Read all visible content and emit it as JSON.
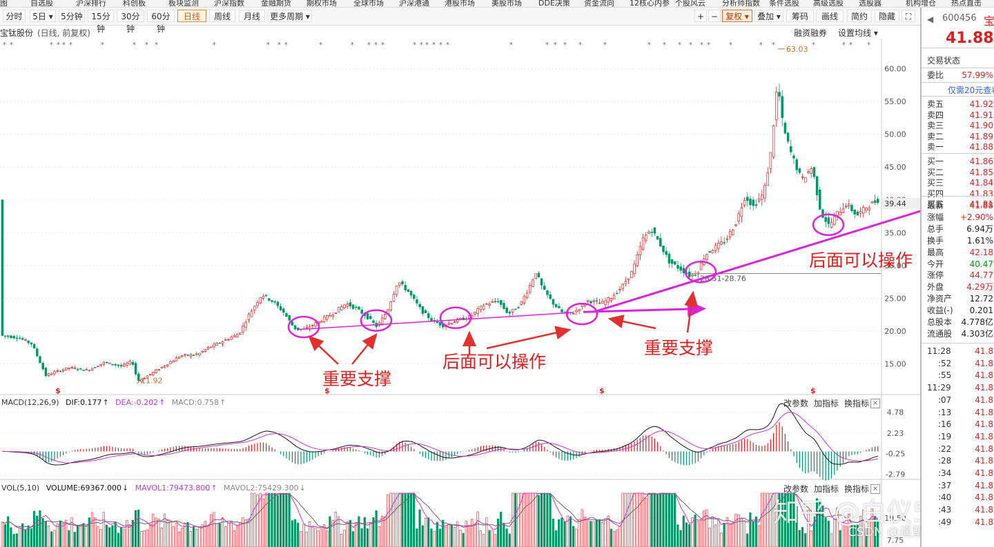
{
  "top_menu": [
    "图",
    "自选股",
    "沪深排行",
    "科创板",
    "板块监测",
    "沪深指数",
    "金融期货",
    "期权市场",
    "全球市场",
    "沪深港通",
    "港股市场",
    "美股市场",
    "DDE决策",
    "资金流向",
    "12核心内参",
    "个股风云",
    "分析师指数",
    "条件选股",
    "高级选股",
    "选股器",
    "机构增仓",
    "热点直击"
  ],
  "toolbar": {
    "periods": [
      "分时",
      "5日",
      "5分钟",
      "15分钟",
      "30分钟",
      "60分钟",
      "日线",
      "周线",
      "月线",
      "更多周期"
    ],
    "active_period": "日线",
    "right_tools": [
      "+",
      "−",
      "复权",
      "叠加",
      "筹码",
      "画线",
      "简约",
      "隐藏"
    ]
  },
  "stock_header": {
    "name": "宝钛股份",
    "mode": "(日线, 前复权)",
    "margin_btn": "融资融券",
    "ma_btn": "设置均线"
  },
  "side_panel": {
    "code": "600456",
    "short_name": "宝",
    "price": "41.88",
    "section": "交易状态",
    "weibi_label": "委比",
    "weibi": "57.99%",
    "banner": "仅需20元查看",
    "asks": [
      {
        "label": "卖五",
        "price": "41.92"
      },
      {
        "label": "卖四",
        "price": "41.91"
      },
      {
        "label": "卖三",
        "price": "41.90"
      },
      {
        "label": "卖二",
        "price": "41.89"
      },
      {
        "label": "卖一",
        "price": "41.88"
      }
    ],
    "bids": [
      {
        "label": "买一",
        "price": "41.86"
      },
      {
        "label": "买二",
        "price": "41.85"
      },
      {
        "label": "买三",
        "price": "41.84"
      },
      {
        "label": "买四",
        "price": "41.83"
      },
      {
        "label": "买五",
        "price": "41.81"
      }
    ],
    "stats": [
      {
        "label": "最新",
        "value": "41.88",
        "color": "up"
      },
      {
        "label": "涨幅",
        "value": "+2.90%",
        "color": "up"
      },
      {
        "label": "总手",
        "value": "6.94万",
        "color": "bk"
      },
      {
        "label": "换手",
        "value": "1.61%",
        "color": "bk"
      },
      {
        "label": "最高",
        "value": "42.18",
        "color": "up"
      },
      {
        "label": "今开",
        "value": "40.47",
        "color": "dn"
      },
      {
        "label": "涨停",
        "value": "44.77",
        "color": "up"
      },
      {
        "label": "外盘",
        "value": "4.29万",
        "color": "up"
      },
      {
        "label": "净资产",
        "value": "12.72",
        "color": "bk"
      },
      {
        "label": "收益(-)",
        "value": "0.201",
        "color": "bk"
      },
      {
        "label": "总股本",
        "value": "4.778亿",
        "color": "bk"
      },
      {
        "label": "流通股",
        "value": "4.303亿",
        "color": "bk"
      }
    ],
    "ticks": [
      {
        "label": "11:28",
        "value": "41.8"
      },
      {
        "label": ":52",
        "value": "41.8"
      },
      {
        "label": ":55",
        "value": "41.8"
      },
      {
        "label": "11:29",
        "value": "41.8"
      },
      {
        "label": ":07",
        "value": "41.8"
      },
      {
        "label": ":13",
        "value": "41.8"
      },
      {
        "label": ":16",
        "value": "41.8"
      },
      {
        "label": ":19",
        "value": "41.8"
      },
      {
        "label": ":22",
        "value": "41.8"
      },
      {
        "label": ":28",
        "value": "41.8"
      },
      {
        "label": ":34",
        "value": "41.8"
      },
      {
        "label": ":37",
        "value": "41.8"
      },
      {
        "label": ":40",
        "value": "41.8"
      },
      {
        "label": ":43",
        "value": "41.8"
      },
      {
        "label": ":49",
        "value": "41.8"
      }
    ]
  },
  "macd_header": {
    "name": "MACD(12,26,9)",
    "dif": "DIF:0.177",
    "dea": "DEA:-0.202",
    "macd": "MACD:0.758"
  },
  "vol_header": {
    "name": "VOL(5,10)",
    "volume": "VOLUME:69367.000",
    "mavol1": "MAVOL1:79473.800",
    "mavol2": "MAVOL2:75429.300"
  },
  "indicator_buttons": [
    "改参数",
    "加指标",
    "换指标"
  ],
  "annotations": {
    "support_1": "重要支撑",
    "later_1": "后面可以操作",
    "support_2": "重要支撑",
    "later_2": "后面可以操作",
    "range_label": "28.51-28.76"
  },
  "watermark": {
    "main": "知乎 @白仪520",
    "sub": "CSDN @遥望盼望"
  },
  "colors": {
    "up": "#e02020",
    "down": "#009966",
    "trendline": "#dd22dd",
    "arrow": "#e03030",
    "dif": "#111111",
    "dea": "#cc33cc"
  },
  "chart_data": {
    "type": "candlestick",
    "price_axis": {
      "ticks": [
        15,
        20,
        25,
        30,
        35,
        40,
        45,
        50,
        55,
        60
      ],
      "ylim": [
        10.4,
        64.6
      ]
    },
    "current_price_label": "39.44",
    "high_label": "63.03",
    "low_label": "11.92",
    "high_value": 63.03,
    "low_value": 11.92,
    "range_line_value": 28.76,
    "price_path": [
      [
        0,
        19.3
      ],
      [
        25,
        19.0
      ],
      [
        45,
        18.0
      ],
      [
        65,
        13.2
      ],
      [
        80,
        13.8
      ],
      [
        100,
        14.4
      ],
      [
        125,
        14.0
      ],
      [
        150,
        15.2
      ],
      [
        175,
        14.6
      ],
      [
        190,
        15.4
      ],
      [
        198,
        12.4
      ],
      [
        205,
        12.7
      ],
      [
        235,
        14.6
      ],
      [
        260,
        16.2
      ],
      [
        285,
        16.4
      ],
      [
        300,
        17.4
      ],
      [
        325,
        18.6
      ],
      [
        345,
        19.6
      ],
      [
        360,
        22.6
      ],
      [
        378,
        25.6
      ],
      [
        395,
        24.4
      ],
      [
        410,
        22.8
      ],
      [
        425,
        20.4
      ],
      [
        440,
        20.2
      ],
      [
        460,
        21.4
      ],
      [
        480,
        22.6
      ],
      [
        500,
        24.2
      ],
      [
        515,
        23.4
      ],
      [
        530,
        22.2
      ],
      [
        545,
        20.6
      ],
      [
        560,
        23.2
      ],
      [
        575,
        27.6
      ],
      [
        590,
        26.0
      ],
      [
        610,
        23.0
      ],
      [
        625,
        21.6
      ],
      [
        640,
        20.8
      ],
      [
        660,
        21.6
      ],
      [
        680,
        22.2
      ],
      [
        700,
        24.0
      ],
      [
        720,
        24.6
      ],
      [
        735,
        22.6
      ],
      [
        752,
        24.0
      ],
      [
        765,
        26.6
      ],
      [
        775,
        29.0
      ],
      [
        785,
        26.4
      ],
      [
        800,
        24.2
      ],
      [
        815,
        22.6
      ],
      [
        830,
        22.8
      ],
      [
        850,
        24.6
      ],
      [
        870,
        24.2
      ],
      [
        885,
        25.2
      ],
      [
        900,
        26.8
      ],
      [
        915,
        29.2
      ],
      [
        930,
        34.0
      ],
      [
        942,
        35.6
      ],
      [
        955,
        33.2
      ],
      [
        968,
        30.6
      ],
      [
        985,
        29.4
      ],
      [
        998,
        28.4
      ],
      [
        1008,
        28.8
      ],
      [
        1020,
        31.6
      ],
      [
        1035,
        32.8
      ],
      [
        1050,
        33.8
      ],
      [
        1065,
        36.6
      ],
      [
        1078,
        40.6
      ],
      [
        1090,
        39.0
      ],
      [
        1105,
        41.0
      ],
      [
        1115,
        47.0
      ],
      [
        1125,
        58.0
      ],
      [
        1133,
        51.0
      ],
      [
        1145,
        47.0
      ],
      [
        1160,
        43.0
      ],
      [
        1175,
        45.0
      ],
      [
        1188,
        38.0
      ],
      [
        1200,
        36.0
      ],
      [
        1212,
        38.0
      ],
      [
        1225,
        39.4
      ],
      [
        1240,
        37.6
      ],
      [
        1255,
        39.0
      ],
      [
        1270,
        40.0
      ]
    ],
    "trend_lines": [
      {
        "from": [
          430,
          20.2
        ],
        "to": [
          830,
          22.8
        ]
      },
      {
        "from": [
          845,
          22.9
        ],
        "to": [
          1020,
          23.4
        ]
      },
      {
        "from": [
          860,
          22.9
        ],
        "to": [
          1380,
          39.8
        ]
      }
    ],
    "support_circles": [
      [
        440,
        20.6
      ],
      [
        545,
        21.6
      ],
      [
        660,
        22.0
      ],
      [
        843,
        22.6
      ],
      [
        1015,
        29.0
      ],
      [
        1200,
        36.2
      ]
    ],
    "macd_axis": {
      "ticks": [
        4.78,
        2.23,
        -0.25,
        -2.79
      ],
      "ylim": [
        -3.4,
        5.4
      ]
    },
    "vol_axis": {
      "ticks": [
        19.5,
        7.75
      ]
    },
    "period": "日线"
  }
}
